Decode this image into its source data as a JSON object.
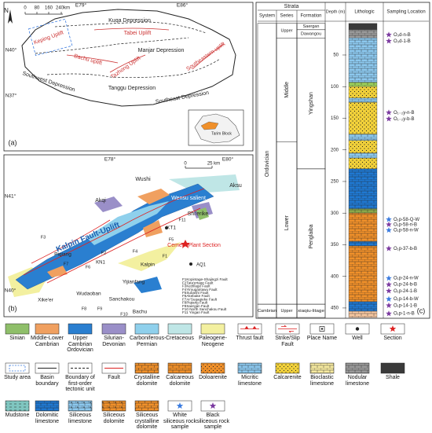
{
  "panel_a": {
    "label": "(a)",
    "north": "N",
    "scale": [
      "0",
      "80",
      "160",
      "240km"
    ],
    "coords": [
      "E79°",
      "E86°",
      "N40°",
      "N37°"
    ],
    "units": [
      "Kuqa Depression",
      "Tabei Uplift",
      "Keping Uplift",
      "Manjar Depression",
      "Bachu uplift",
      "Tazhong Uplift",
      "Southeastern uplift",
      "Southwest Depression",
      "Tanggu Depression",
      "Southeast Depression"
    ],
    "inset": "Tarim Block"
  },
  "panel_b": {
    "label": "(b)",
    "coords": [
      "E78°",
      "E80°",
      "N41°",
      "N40°"
    ],
    "scale": [
      "0",
      "25 km"
    ],
    "places": [
      "Wushi",
      "Aksu",
      "Akqi",
      "Wensu salient",
      "Shi'erike",
      "Kalpin Fault-Uplift",
      "Cement Plant Section",
      "AQ1",
      "Piqiang",
      "Kalpin",
      "KT1",
      "KN1",
      "Yijianfang",
      "Wudaoban",
      "Sanchakou",
      "Bachu",
      "Xike'er"
    ],
    "faults": [
      "F1",
      "F2",
      "F3",
      "F4",
      "F5",
      "F6",
      "F7",
      "F8",
      "F9",
      "F10",
      "F11"
    ],
    "fault_list": [
      "F1Kopintage-Shajingzi Fault",
      "F2Tata'ertage Fault",
      "F3Kezillage Fault",
      "F4Yimugantawu Fault",
      "F5Subashi Fault",
      "F6Akebake Fault",
      "F7Ar'Sugaqieke Fault",
      "F8Piqiang Fault",
      "F9Saergan Fault",
      "F10 North Sanchakou Fault",
      "F11 Yingan Fault"
    ]
  },
  "panel_c": {
    "label": "(c)",
    "headers": {
      "strata": "Strata",
      "system": "System",
      "series": "Series",
      "formation": "Formation",
      "depth": "Depth (m)",
      "lithologic": "Lithologic",
      "sampling": "Sampling Location"
    },
    "depth_lim": [
      0,
      465
    ],
    "depth_ticks": [
      50,
      100,
      150,
      200,
      250,
      300,
      350,
      400,
      450
    ],
    "systems": [
      {
        "name": "Ordovician",
        "top": 0,
        "base": 444
      },
      {
        "name": "Cambrian",
        "top": 444,
        "base": 465
      }
    ],
    "series": [
      {
        "name": "Upper",
        "top": 0,
        "base": 23
      },
      {
        "name": "Middle",
        "top": 23,
        "base": 187
      },
      {
        "name": "Lower",
        "top": 187,
        "base": 444
      },
      {
        "name": "Upper",
        "top": 444,
        "base": 465
      }
    ],
    "formations": [
      {
        "name": "Saergan",
        "top": 0,
        "base": 10
      },
      {
        "name": "Dawangou",
        "top": 10,
        "base": 23
      },
      {
        "name": "Yingshan",
        "top": 23,
        "base": 230
      },
      {
        "name": "Penglaiba",
        "top": 230,
        "base": 444
      },
      {
        "name": "xiaqiu-litage",
        "top": 444,
        "base": 465
      }
    ],
    "layers": [
      {
        "top": 0,
        "base": 10,
        "color": "#3a3a3a",
        "pattern": "none"
      },
      {
        "top": 10,
        "base": 23,
        "color": "#9a9a9a",
        "pattern": "brick"
      },
      {
        "top": 23,
        "base": 93,
        "color": "#8cc8ee",
        "pattern": "brick"
      },
      {
        "top": 93,
        "base": 100,
        "color": "#9ccf5a",
        "pattern": "brick"
      },
      {
        "top": 100,
        "base": 118,
        "color": "#f2d13a",
        "pattern": "dots"
      },
      {
        "top": 118,
        "base": 125,
        "color": "#8cc8ee",
        "pattern": "brick"
      },
      {
        "top": 125,
        "base": 175,
        "color": "#f2d13a",
        "pattern": "dots"
      },
      {
        "top": 175,
        "base": 185,
        "color": "#8cc8ee",
        "pattern": "brick"
      },
      {
        "top": 185,
        "base": 205,
        "color": "#f2d13a",
        "pattern": "dots"
      },
      {
        "top": 205,
        "base": 213,
        "color": "#8cc8ee",
        "pattern": "brick"
      },
      {
        "top": 213,
        "base": 230,
        "color": "#f2d13a",
        "pattern": "dots"
      },
      {
        "top": 230,
        "base": 293,
        "color": "#1f78d1",
        "pattern": "brick"
      },
      {
        "top": 293,
        "base": 300,
        "color": "#8aa84a",
        "pattern": "brick"
      },
      {
        "top": 300,
        "base": 345,
        "color": "#f0902a",
        "pattern": "brick"
      },
      {
        "top": 345,
        "base": 352,
        "color": "#1f78d1",
        "pattern": "brick"
      },
      {
        "top": 352,
        "base": 440,
        "color": "#f0902a",
        "pattern": "brick"
      },
      {
        "top": 440,
        "base": 455,
        "color": "#1f78d1",
        "pattern": "brick"
      },
      {
        "top": 455,
        "base": 465,
        "color": "#f7c7a0",
        "pattern": "brick"
      }
    ],
    "samples": [
      {
        "name": "O₃d-n-B",
        "depth": 18,
        "color": "#7b3aa0"
      },
      {
        "name": "O₃d-1-B",
        "depth": 28,
        "color": "#7b3aa0"
      },
      {
        "name": "O₁₋₂y-n-B",
        "depth": 141,
        "color": "#7b3aa0"
      },
      {
        "name": "O₁₋₂y-b-B",
        "depth": 151,
        "color": "#7b3aa0"
      },
      {
        "name": "O₁p-58-Q-W",
        "depth": 310,
        "color": "#3a7be0"
      },
      {
        "name": "O₁p-58-n-B",
        "depth": 318,
        "color": "#7b3aa0"
      },
      {
        "name": "O₁p-58-n-W",
        "depth": 327,
        "color": "#3a7be0"
      },
      {
        "name": "O₁p-37-b-B",
        "depth": 356,
        "color": "#7b3aa0"
      },
      {
        "name": "O₁p-24-n-W",
        "depth": 403,
        "color": "#3a7be0"
      },
      {
        "name": "O₁p-24-b-B",
        "depth": 413,
        "color": "#7b3aa0"
      },
      {
        "name": "O₁p-24-1-B",
        "depth": 423,
        "color": "#7b3aa0"
      },
      {
        "name": "O₁p-14-b-W",
        "depth": 436,
        "color": "#3a7be0"
      },
      {
        "name": "O₁p-14-1-B",
        "depth": 446,
        "color": "#7b3aa0"
      },
      {
        "name": "O₁p-1-n-B",
        "depth": 459,
        "color": "#7b3aa0"
      }
    ]
  },
  "legend": [
    [
      "Sinian",
      "Middle-Lower Cambrian",
      "Upper Cambrian Ordovician",
      "Silurian-Devonian",
      "Carboniferous-Permian",
      "Cretaceous",
      "Paleogene-Neogene",
      "Thrust fault",
      "Strike/Slip Fault",
      "Place Name",
      "Well",
      "Section"
    ],
    [
      "Study area",
      "Basin boundary",
      "Boundary of first-order tectonic unit",
      "Fault",
      "Crystalline dolomite",
      "Calcareous dolomite",
      "Doloarenite",
      "Micritic limestone",
      "Calcarenite",
      "Bioclastic limestone",
      "Nodular limestone",
      "Shale"
    ],
    [
      "Mudstone",
      "Dolomitic limestone",
      "Siliceous limestone",
      "Siliceous dolomite",
      "Siliceous crystalline dolomite",
      "White siliceous rock sample",
      "Black siliceous rock sample"
    ]
  ]
}
